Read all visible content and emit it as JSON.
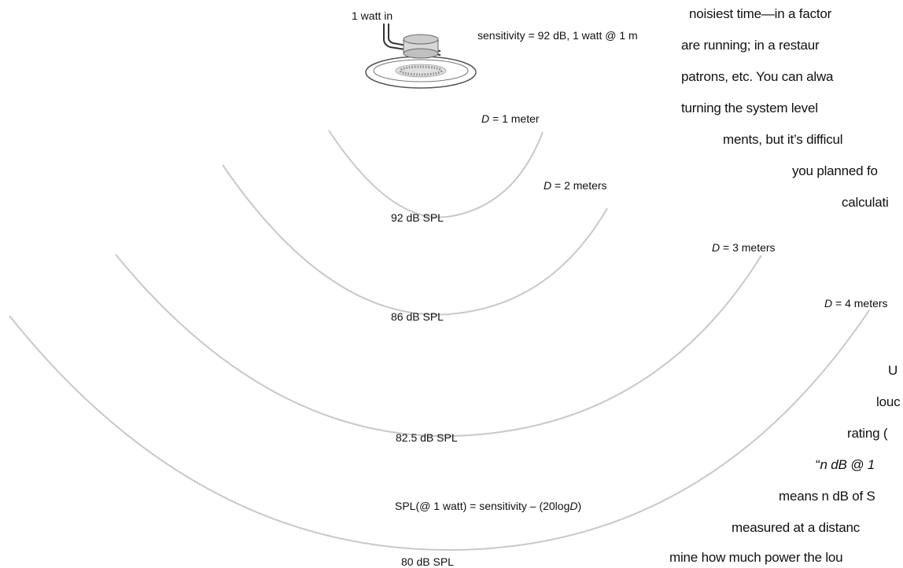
{
  "diagram": {
    "input_label": "1 watt in",
    "sensitivity_label": "sensitivity = 92 dB, 1 watt @ 1 m",
    "distances": [
      {
        "d_prefix": "D",
        "d_text": " = 1 meter",
        "spl": "92 dB SPL"
      },
      {
        "d_prefix": "D",
        "d_text": " = 2 meters",
        "spl": "86 dB SPL"
      },
      {
        "d_prefix": "D",
        "d_text": " = 3 meters",
        "spl": "82.5 dB SPL"
      },
      {
        "d_prefix": "D",
        "d_text": " = 4 meters",
        "spl": "80 dB SPL"
      }
    ],
    "formula_main": "SPL(@ 1 watt) = sensitivity – (20log",
    "formula_var": "D",
    "formula_close": ")",
    "colors": {
      "arc": "#c8c8c8",
      "speaker_outline": "#555555",
      "wire": "#333333"
    }
  },
  "text_column": {
    "lines": [
      "noisiest time—in a factor",
      "are running; in a restaur",
      "patrons, etc. You can alwa",
      "turning the system level",
      "ments, but it’s difficul",
      "you planned fo",
      "calculati"
    ],
    "lower_lines": [
      "U",
      "louc",
      "rating (",
      "n dB @ 1",
      "means n dB of S",
      "measured at a distanc",
      "mine how much power the lou"
    ]
  }
}
